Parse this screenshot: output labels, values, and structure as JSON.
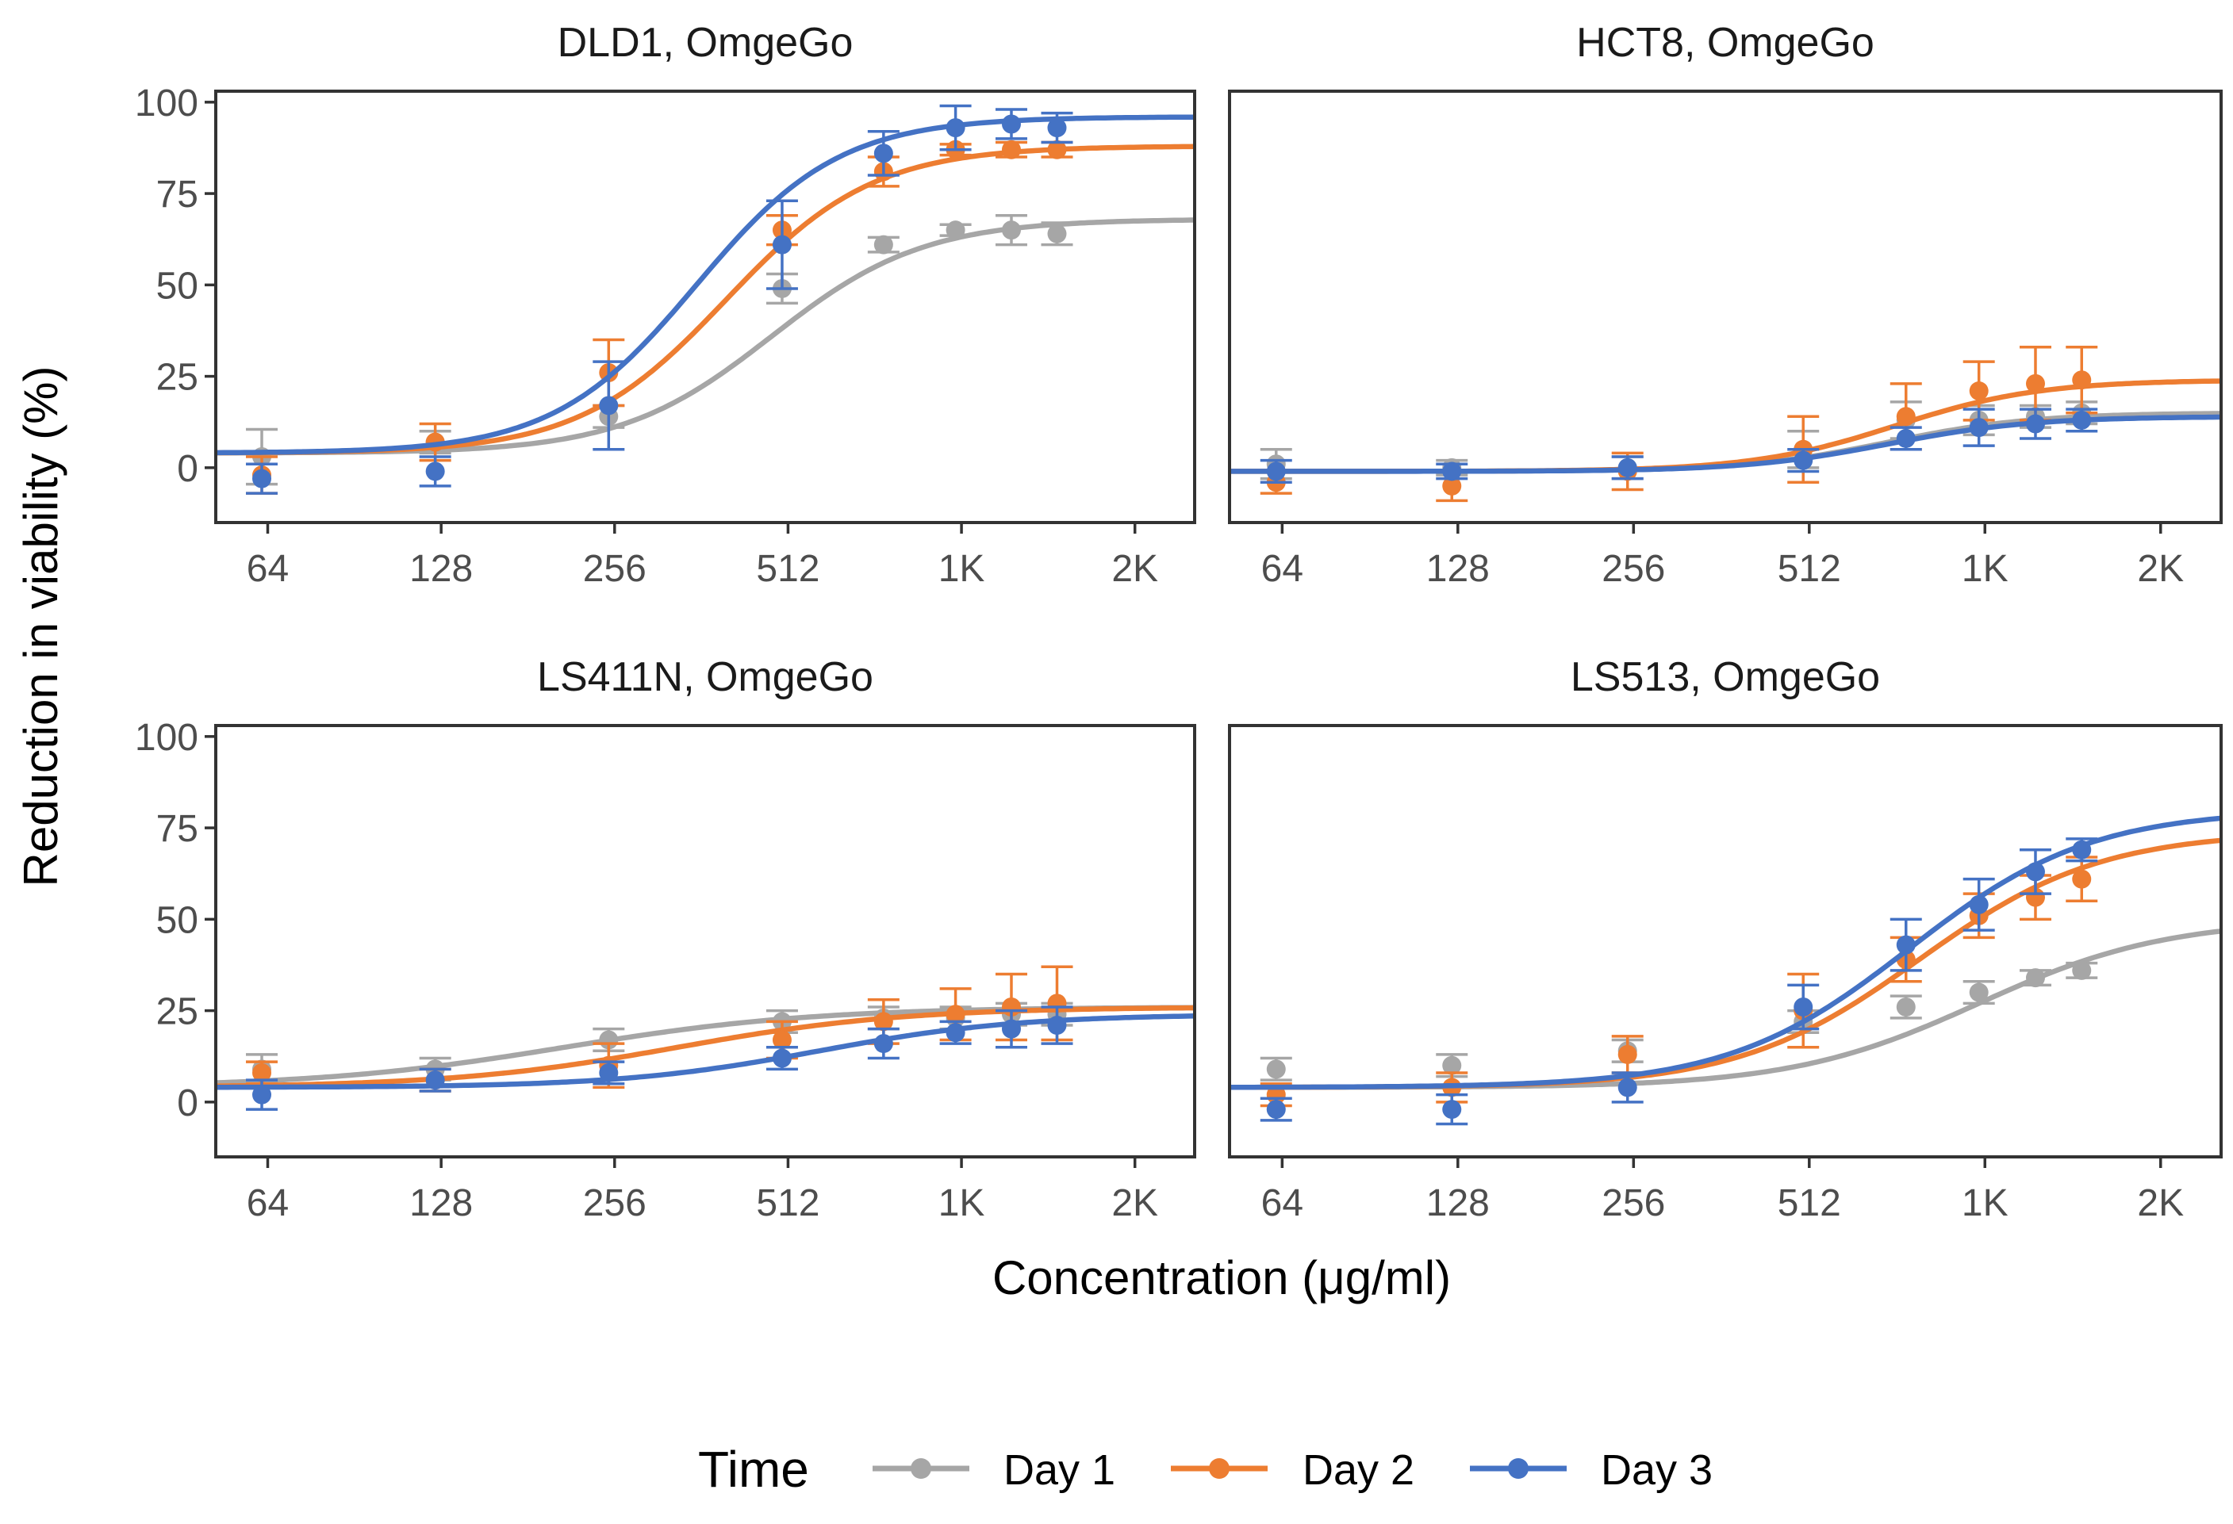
{
  "figure": {
    "y_axis_label": "Reduction in viability (%)",
    "x_axis_label": "Concentration (μg/ml)",
    "legend_title": "Time"
  },
  "series_style": [
    {
      "name": "Day 1",
      "color": "#a6a6a6"
    },
    {
      "name": "Day 2",
      "color": "#ed7d31"
    },
    {
      "name": "Day 3",
      "color": "#4472c4"
    }
  ],
  "chart_data": [
    {
      "type": "line",
      "title": "DLD1, OmgeGo",
      "xlabel": "Concentration (μg/ml)",
      "ylabel": "Reduction in viability (%)",
      "x_scale": "log2",
      "xlim": [
        52,
        2600
      ],
      "ylim": [
        -15,
        103
      ],
      "x_ticks": [
        64,
        128,
        256,
        512,
        1024,
        2048
      ],
      "x_tick_labels": [
        "64",
        "128",
        "256",
        "512",
        "1K",
        "2K"
      ],
      "y_ticks": [
        0,
        25,
        50,
        75,
        100
      ],
      "y_tick_labels": [
        "0",
        "25",
        "50",
        "75",
        "100"
      ],
      "series": [
        {
          "name": "Day 1",
          "points": [
            {
              "x": 62.5,
              "y": 3,
              "err": 7.5
            },
            {
              "x": 125,
              "y": 7,
              "err": 3
            },
            {
              "x": 250,
              "y": 14,
              "err": 3
            },
            {
              "x": 500,
              "y": 49,
              "err": 4
            },
            {
              "x": 750,
              "y": 61,
              "err": 2
            },
            {
              "x": 1000,
              "y": 65,
              "err": 1.5
            },
            {
              "x": 1250,
              "y": 65,
              "err": 4
            },
            {
              "x": 1500,
              "y": 64,
              "err": 3
            }
          ],
          "fit": {
            "bottom": 4,
            "top": 68,
            "ec50": 480,
            "hill": 3.3
          }
        },
        {
          "name": "Day 2",
          "points": [
            {
              "x": 62.5,
              "y": -2,
              "err": 5
            },
            {
              "x": 125,
              "y": 7,
              "err": 5
            },
            {
              "x": 250,
              "y": 26,
              "err": 9
            },
            {
              "x": 500,
              "y": 65,
              "err": 4
            },
            {
              "x": 750,
              "y": 81,
              "err": 4
            },
            {
              "x": 1000,
              "y": 87,
              "err": 1.5
            },
            {
              "x": 1250,
              "y": 87,
              "err": 2
            },
            {
              "x": 1500,
              "y": 87,
              "err": 2
            }
          ],
          "fit": {
            "bottom": 4,
            "top": 88,
            "ec50": 400,
            "hill": 3.4
          }
        },
        {
          "name": "Day 3",
          "points": [
            {
              "x": 62.5,
              "y": -3,
              "err": 4
            },
            {
              "x": 125,
              "y": -1,
              "err": 4
            },
            {
              "x": 250,
              "y": 17,
              "err": 12
            },
            {
              "x": 500,
              "y": 61,
              "err": 12
            },
            {
              "x": 750,
              "y": 86,
              "err": 6
            },
            {
              "x": 1000,
              "y": 93,
              "err": 6
            },
            {
              "x": 1250,
              "y": 94,
              "err": 4
            },
            {
              "x": 1500,
              "y": 93,
              "err": 4
            }
          ],
          "fit": {
            "bottom": 4,
            "top": 96,
            "ec50": 355,
            "hill": 3.5
          }
        }
      ]
    },
    {
      "type": "line",
      "title": "HCT8, OmgeGo",
      "xlabel": "Concentration (μg/ml)",
      "ylabel": "Reduction in viability (%)",
      "x_scale": "log2",
      "xlim": [
        52,
        2600
      ],
      "ylim": [
        -15,
        103
      ],
      "x_ticks": [
        64,
        128,
        256,
        512,
        1024,
        2048
      ],
      "x_tick_labels": [
        "64",
        "128",
        "256",
        "512",
        "1K",
        "2K"
      ],
      "y_ticks": [
        0,
        25,
        50,
        75,
        100
      ],
      "y_tick_labels": [
        "0",
        "25",
        "50",
        "75",
        "100"
      ],
      "series": [
        {
          "name": "Day 1",
          "points": [
            {
              "x": 62.5,
              "y": 1,
              "err": 4
            },
            {
              "x": 125,
              "y": 0,
              "err": 2
            },
            {
              "x": 250,
              "y": 0,
              "err": 3
            },
            {
              "x": 500,
              "y": 5,
              "err": 5
            },
            {
              "x": 750,
              "y": 13,
              "err": 5
            },
            {
              "x": 1000,
              "y": 13,
              "err": 4
            },
            {
              "x": 1250,
              "y": 14,
              "err": 3
            },
            {
              "x": 1500,
              "y": 15,
              "err": 3
            }
          ],
          "fit": {
            "bottom": -1,
            "top": 15,
            "ec50": 700,
            "hill": 3.5
          }
        },
        {
          "name": "Day 2",
          "points": [
            {
              "x": 62.5,
              "y": -4,
              "err": 3
            },
            {
              "x": 125,
              "y": -5,
              "err": 4
            },
            {
              "x": 250,
              "y": -1,
              "err": 5
            },
            {
              "x": 500,
              "y": 5,
              "err": 9
            },
            {
              "x": 750,
              "y": 14,
              "err": 9
            },
            {
              "x": 1000,
              "y": 21,
              "err": 8
            },
            {
              "x": 1250,
              "y": 23,
              "err": 10
            },
            {
              "x": 1500,
              "y": 24,
              "err": 9
            }
          ],
          "fit": {
            "bottom": -1,
            "top": 24,
            "ec50": 720,
            "hill": 3.5
          }
        },
        {
          "name": "Day 3",
          "points": [
            {
              "x": 62.5,
              "y": -1,
              "err": 3
            },
            {
              "x": 125,
              "y": -1,
              "err": 2
            },
            {
              "x": 250,
              "y": 0,
              "err": 3
            },
            {
              "x": 500,
              "y": 2,
              "err": 3
            },
            {
              "x": 750,
              "y": 8,
              "err": 3
            },
            {
              "x": 1000,
              "y": 11,
              "err": 5
            },
            {
              "x": 1250,
              "y": 12,
              "err": 4
            },
            {
              "x": 1500,
              "y": 13,
              "err": 3
            }
          ],
          "fit": {
            "bottom": -1,
            "top": 14,
            "ec50": 700,
            "hill": 3.5
          }
        }
      ]
    },
    {
      "type": "line",
      "title": "LS411N, OmgeGo",
      "xlabel": "Concentration (μg/ml)",
      "ylabel": "Reduction in viability (%)",
      "x_scale": "log2",
      "xlim": [
        52,
        2600
      ],
      "ylim": [
        -15,
        103
      ],
      "x_ticks": [
        64,
        128,
        256,
        512,
        1024,
        2048
      ],
      "x_tick_labels": [
        "64",
        "128",
        "256",
        "512",
        "1K",
        "2K"
      ],
      "y_ticks": [
        0,
        25,
        50,
        75,
        100
      ],
      "y_tick_labels": [
        "0",
        "25",
        "50",
        "75",
        "100"
      ],
      "series": [
        {
          "name": "Day 1",
          "points": [
            {
              "x": 62.5,
              "y": 9,
              "err": 4
            },
            {
              "x": 125,
              "y": 9,
              "err": 3
            },
            {
              "x": 250,
              "y": 17,
              "err": 3
            },
            {
              "x": 500,
              "y": 22,
              "err": 3
            },
            {
              "x": 750,
              "y": 23,
              "err": 3
            },
            {
              "x": 1000,
              "y": 23,
              "err": 3
            },
            {
              "x": 1250,
              "y": 24,
              "err": 3
            },
            {
              "x": 1500,
              "y": 24,
              "err": 3
            }
          ],
          "fit": {
            "bottom": 4,
            "top": 26,
            "ec50": 210,
            "hill": 2.0
          }
        },
        {
          "name": "Day 2",
          "points": [
            {
              "x": 62.5,
              "y": 8,
              "err": 3
            },
            {
              "x": 125,
              "y": 6,
              "err": 3
            },
            {
              "x": 250,
              "y": 10,
              "err": 6
            },
            {
              "x": 500,
              "y": 17,
              "err": 5
            },
            {
              "x": 750,
              "y": 22,
              "err": 6
            },
            {
              "x": 1000,
              "y": 24,
              "err": 7
            },
            {
              "x": 1250,
              "y": 26,
              "err": 9
            },
            {
              "x": 1500,
              "y": 27,
              "err": 10
            }
          ],
          "fit": {
            "bottom": 4,
            "top": 26,
            "ec50": 330,
            "hill": 2.2
          }
        },
        {
          "name": "Day 3",
          "points": [
            {
              "x": 62.5,
              "y": 2,
              "err": 4
            },
            {
              "x": 125,
              "y": 6,
              "err": 3
            },
            {
              "x": 250,
              "y": 8,
              "err": 3
            },
            {
              "x": 500,
              "y": 12,
              "err": 3
            },
            {
              "x": 750,
              "y": 16,
              "err": 4
            },
            {
              "x": 1000,
              "y": 19,
              "err": 3
            },
            {
              "x": 1250,
              "y": 20,
              "err": 5
            },
            {
              "x": 1500,
              "y": 21,
              "err": 5
            }
          ],
          "fit": {
            "bottom": 4,
            "top": 24,
            "ec50": 580,
            "hill": 2.5
          }
        }
      ]
    },
    {
      "type": "line",
      "title": "LS513, OmgeGo",
      "xlabel": "Concentration (μg/ml)",
      "ylabel": "Reduction in viability (%)",
      "x_scale": "log2",
      "xlim": [
        52,
        2600
      ],
      "ylim": [
        -15,
        103
      ],
      "x_ticks": [
        64,
        128,
        256,
        512,
        1024,
        2048
      ],
      "x_tick_labels": [
        "64",
        "128",
        "256",
        "512",
        "1K",
        "2K"
      ],
      "y_ticks": [
        0,
        25,
        50,
        75,
        100
      ],
      "y_tick_labels": [
        "0",
        "25",
        "50",
        "75",
        "100"
      ],
      "series": [
        {
          "name": "Day 1",
          "points": [
            {
              "x": 62.5,
              "y": 9,
              "err": 3
            },
            {
              "x": 125,
              "y": 10,
              "err": 3
            },
            {
              "x": 250,
              "y": 14,
              "err": 3
            },
            {
              "x": 500,
              "y": 22,
              "err": 3
            },
            {
              "x": 750,
              "y": 26,
              "err": 3
            },
            {
              "x": 1000,
              "y": 30,
              "err": 3
            },
            {
              "x": 1250,
              "y": 34,
              "err": 2
            },
            {
              "x": 1500,
              "y": 36,
              "err": 2
            }
          ],
          "fit": {
            "bottom": 4,
            "top": 50,
            "ec50": 1000,
            "hill": 2.7
          }
        },
        {
          "name": "Day 2",
          "points": [
            {
              "x": 62.5,
              "y": 2,
              "err": 3
            },
            {
              "x": 125,
              "y": 4,
              "err": 4
            },
            {
              "x": 250,
              "y": 13,
              "err": 5
            },
            {
              "x": 500,
              "y": 25,
              "err": 10
            },
            {
              "x": 750,
              "y": 39,
              "err": 6
            },
            {
              "x": 1000,
              "y": 51,
              "err": 6
            },
            {
              "x": 1250,
              "y": 56,
              "err": 6
            },
            {
              "x": 1500,
              "y": 61,
              "err": 6
            }
          ],
          "fit": {
            "bottom": 4,
            "top": 74,
            "ec50": 790,
            "hill": 2.8
          }
        },
        {
          "name": "Day 3",
          "points": [
            {
              "x": 62.5,
              "y": -2,
              "err": 3
            },
            {
              "x": 125,
              "y": -2,
              "err": 4
            },
            {
              "x": 250,
              "y": 4,
              "err": 4
            },
            {
              "x": 500,
              "y": 26,
              "err": 6
            },
            {
              "x": 750,
              "y": 43,
              "err": 7
            },
            {
              "x": 1000,
              "y": 54,
              "err": 7
            },
            {
              "x": 1250,
              "y": 63,
              "err": 6
            },
            {
              "x": 1500,
              "y": 69,
              "err": 3
            }
          ],
          "fit": {
            "bottom": 4,
            "top": 80,
            "ec50": 760,
            "hill": 2.8
          }
        }
      ]
    }
  ]
}
